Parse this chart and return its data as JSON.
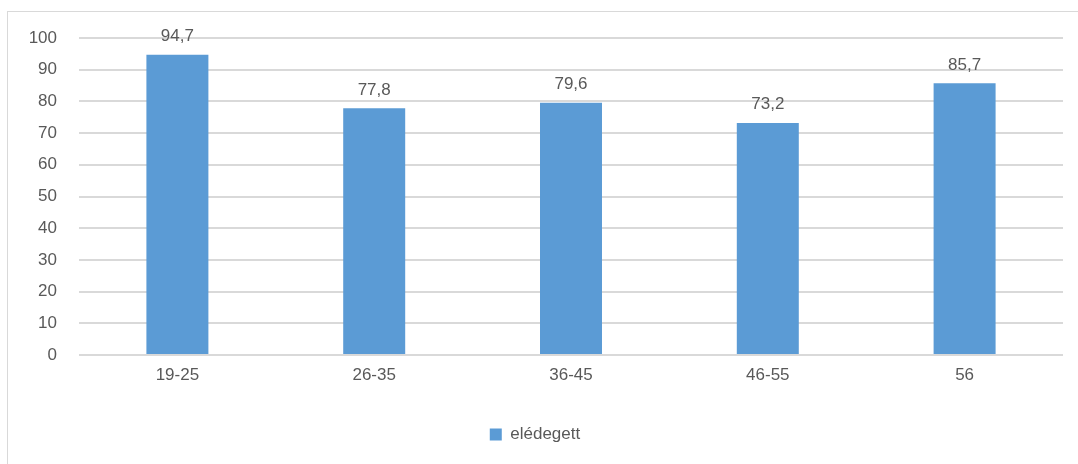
{
  "chart_data": {
    "type": "bar",
    "categories": [
      "19-25",
      "26-35",
      "36-45",
      "46-55",
      "56"
    ],
    "series": [
      {
        "name": "elédegett",
        "color": "#5b9bd5",
        "values": [
          94.7,
          77.8,
          79.6,
          73.2,
          85.7
        ],
        "value_labels": [
          "94,7",
          "77,8",
          "79,6",
          "73,2",
          "85,7"
        ]
      }
    ],
    "ylim": [
      0,
      100
    ],
    "yticks": [
      0,
      10,
      20,
      30,
      40,
      50,
      60,
      70,
      80,
      90,
      100
    ],
    "grid": "y",
    "legend": "bottom"
  }
}
